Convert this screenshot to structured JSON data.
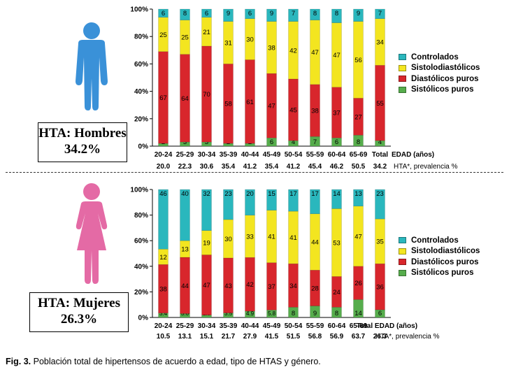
{
  "colors": {
    "controlados": "#2ab7bd",
    "sistolodiastolicos": "#f3e520",
    "diastolicos_puros": "#d8262c",
    "sistolicos_puros": "#56ad4c",
    "men_figure": "#3a91d8",
    "women_figure": "#e46aa5"
  },
  "icons": {
    "men": "male-person-icon",
    "women": "female-person-icon"
  },
  "legend": [
    "Controlados",
    "Sistolodiastólicos",
    "Diastólicos puros",
    "Sistólicos puros"
  ],
  "men": {
    "box_title": "HTA: Hombres",
    "box_value": "34.2%",
    "edad_label": "EDAD (años)",
    "prevalence_label": "HTA*, prevalencia %",
    "prevalence": [
      "20.0",
      "22.3",
      "30.6",
      "35.4",
      "41.2",
      "35.4",
      "41.2",
      "45.4",
      "46.2",
      "50.5",
      "34.2"
    ]
  },
  "women": {
    "box_title": "HTA: Mujeres",
    "box_value": "26.3%",
    "edad_label": "Total EDAD (años)",
    "prevalence_label": "HTA*, prevalencia %",
    "prevalence": [
      "10.5",
      "13.1",
      "15.1",
      "21.7",
      "27.9",
      "41.5",
      "51.5",
      "56.8",
      "56.9",
      "63.7",
      "26.3"
    ]
  },
  "caption": {
    "label": "Fig. 3.",
    "text": "Población total de hipertensos de acuerdo a edad, tipo de HTAS y género."
  },
  "chart_data": [
    {
      "type": "bar",
      "stacked": true,
      "title": "Hombres",
      "categories": [
        "20-24",
        "25-29",
        "30-34",
        "35-39",
        "40-44",
        "45-49",
        "50-54",
        "55-59",
        "60-64",
        "65-69",
        "Total"
      ],
      "y_ticks": [
        "0%",
        "20%",
        "40%",
        "60%",
        "80%",
        "100%"
      ],
      "ylim": [
        0,
        100
      ],
      "series": [
        {
          "name": "Sistólicos puros",
          "values": [
            2,
            3,
            3,
            2,
            2,
            6,
            4,
            7,
            6,
            8,
            4
          ],
          "labels": [
            "2",
            "3",
            "3",
            "2",
            "2",
            "6",
            "4",
            "7",
            "6",
            "8",
            "4"
          ]
        },
        {
          "name": "Diastólicos puros",
          "values": [
            67,
            64,
            70,
            58,
            61,
            47,
            45,
            38,
            37,
            27,
            55
          ],
          "labels": [
            "67",
            "64",
            "70",
            "58",
            "61",
            "47",
            "45",
            "38",
            "37",
            "27",
            "55"
          ]
        },
        {
          "name": "Sistolodiastólicos",
          "values": [
            25,
            25,
            21,
            31,
            30,
            38,
            42,
            47,
            47,
            56,
            34
          ],
          "labels": [
            "25",
            "25",
            "21",
            "31",
            "30",
            "38",
            "42",
            "47",
            "47",
            "56",
            "34"
          ]
        },
        {
          "name": "Controlados",
          "values": [
            6,
            8,
            6,
            9,
            6,
            9,
            7,
            8,
            8,
            9,
            7
          ],
          "labels": [
            "6",
            "8",
            "6",
            "9",
            "6",
            "9",
            "7",
            "8",
            "8",
            "9",
            "7"
          ]
        }
      ]
    },
    {
      "type": "bar",
      "stacked": true,
      "title": "Mujeres",
      "categories": [
        "20-24",
        "25-29",
        "30-34",
        "35-39",
        "40-44",
        "45-49",
        "50-54",
        "55-59",
        "60-64",
        "65-69",
        "Total"
      ],
      "y_ticks": [
        "0%",
        "20%",
        "40%",
        "60%",
        "80%",
        "100%"
      ],
      "ylim": [
        0,
        100
      ],
      "series": [
        {
          "name": "Sistólicos puros",
          "values": [
            3.4,
            3.0,
            1.9,
            3.5,
            4.9,
            5.8,
            8,
            9,
            8,
            14,
            6
          ],
          "labels": [
            "3.4",
            "3.0",
            "1.9",
            "3.5",
            "4.9",
            "5.8",
            "8",
            "9",
            "8",
            "14",
            "6"
          ]
        },
        {
          "name": "Diastólicos puros",
          "values": [
            38,
            44,
            47,
            43,
            42,
            37,
            34,
            28,
            24,
            26,
            36
          ],
          "labels": [
            "38",
            "44",
            "47",
            "43",
            "42",
            "37",
            "34",
            "28",
            "24",
            "26",
            "36"
          ]
        },
        {
          "name": "Sistolodiastólicos",
          "values": [
            12,
            13,
            19,
            30,
            33,
            41,
            41,
            44,
            53,
            47,
            35
          ],
          "labels": [
            "12",
            "13",
            "19",
            "30",
            "33",
            "41",
            "41",
            "44",
            "53",
            "47",
            "35"
          ]
        },
        {
          "name": "Controlados",
          "values": [
            46,
            40,
            32,
            23,
            20,
            15,
            17,
            17,
            14,
            13,
            23
          ],
          "labels": [
            "46",
            "40",
            "32",
            "23",
            "20",
            "15",
            "17",
            "17",
            "14",
            "13",
            "23"
          ]
        }
      ]
    }
  ]
}
